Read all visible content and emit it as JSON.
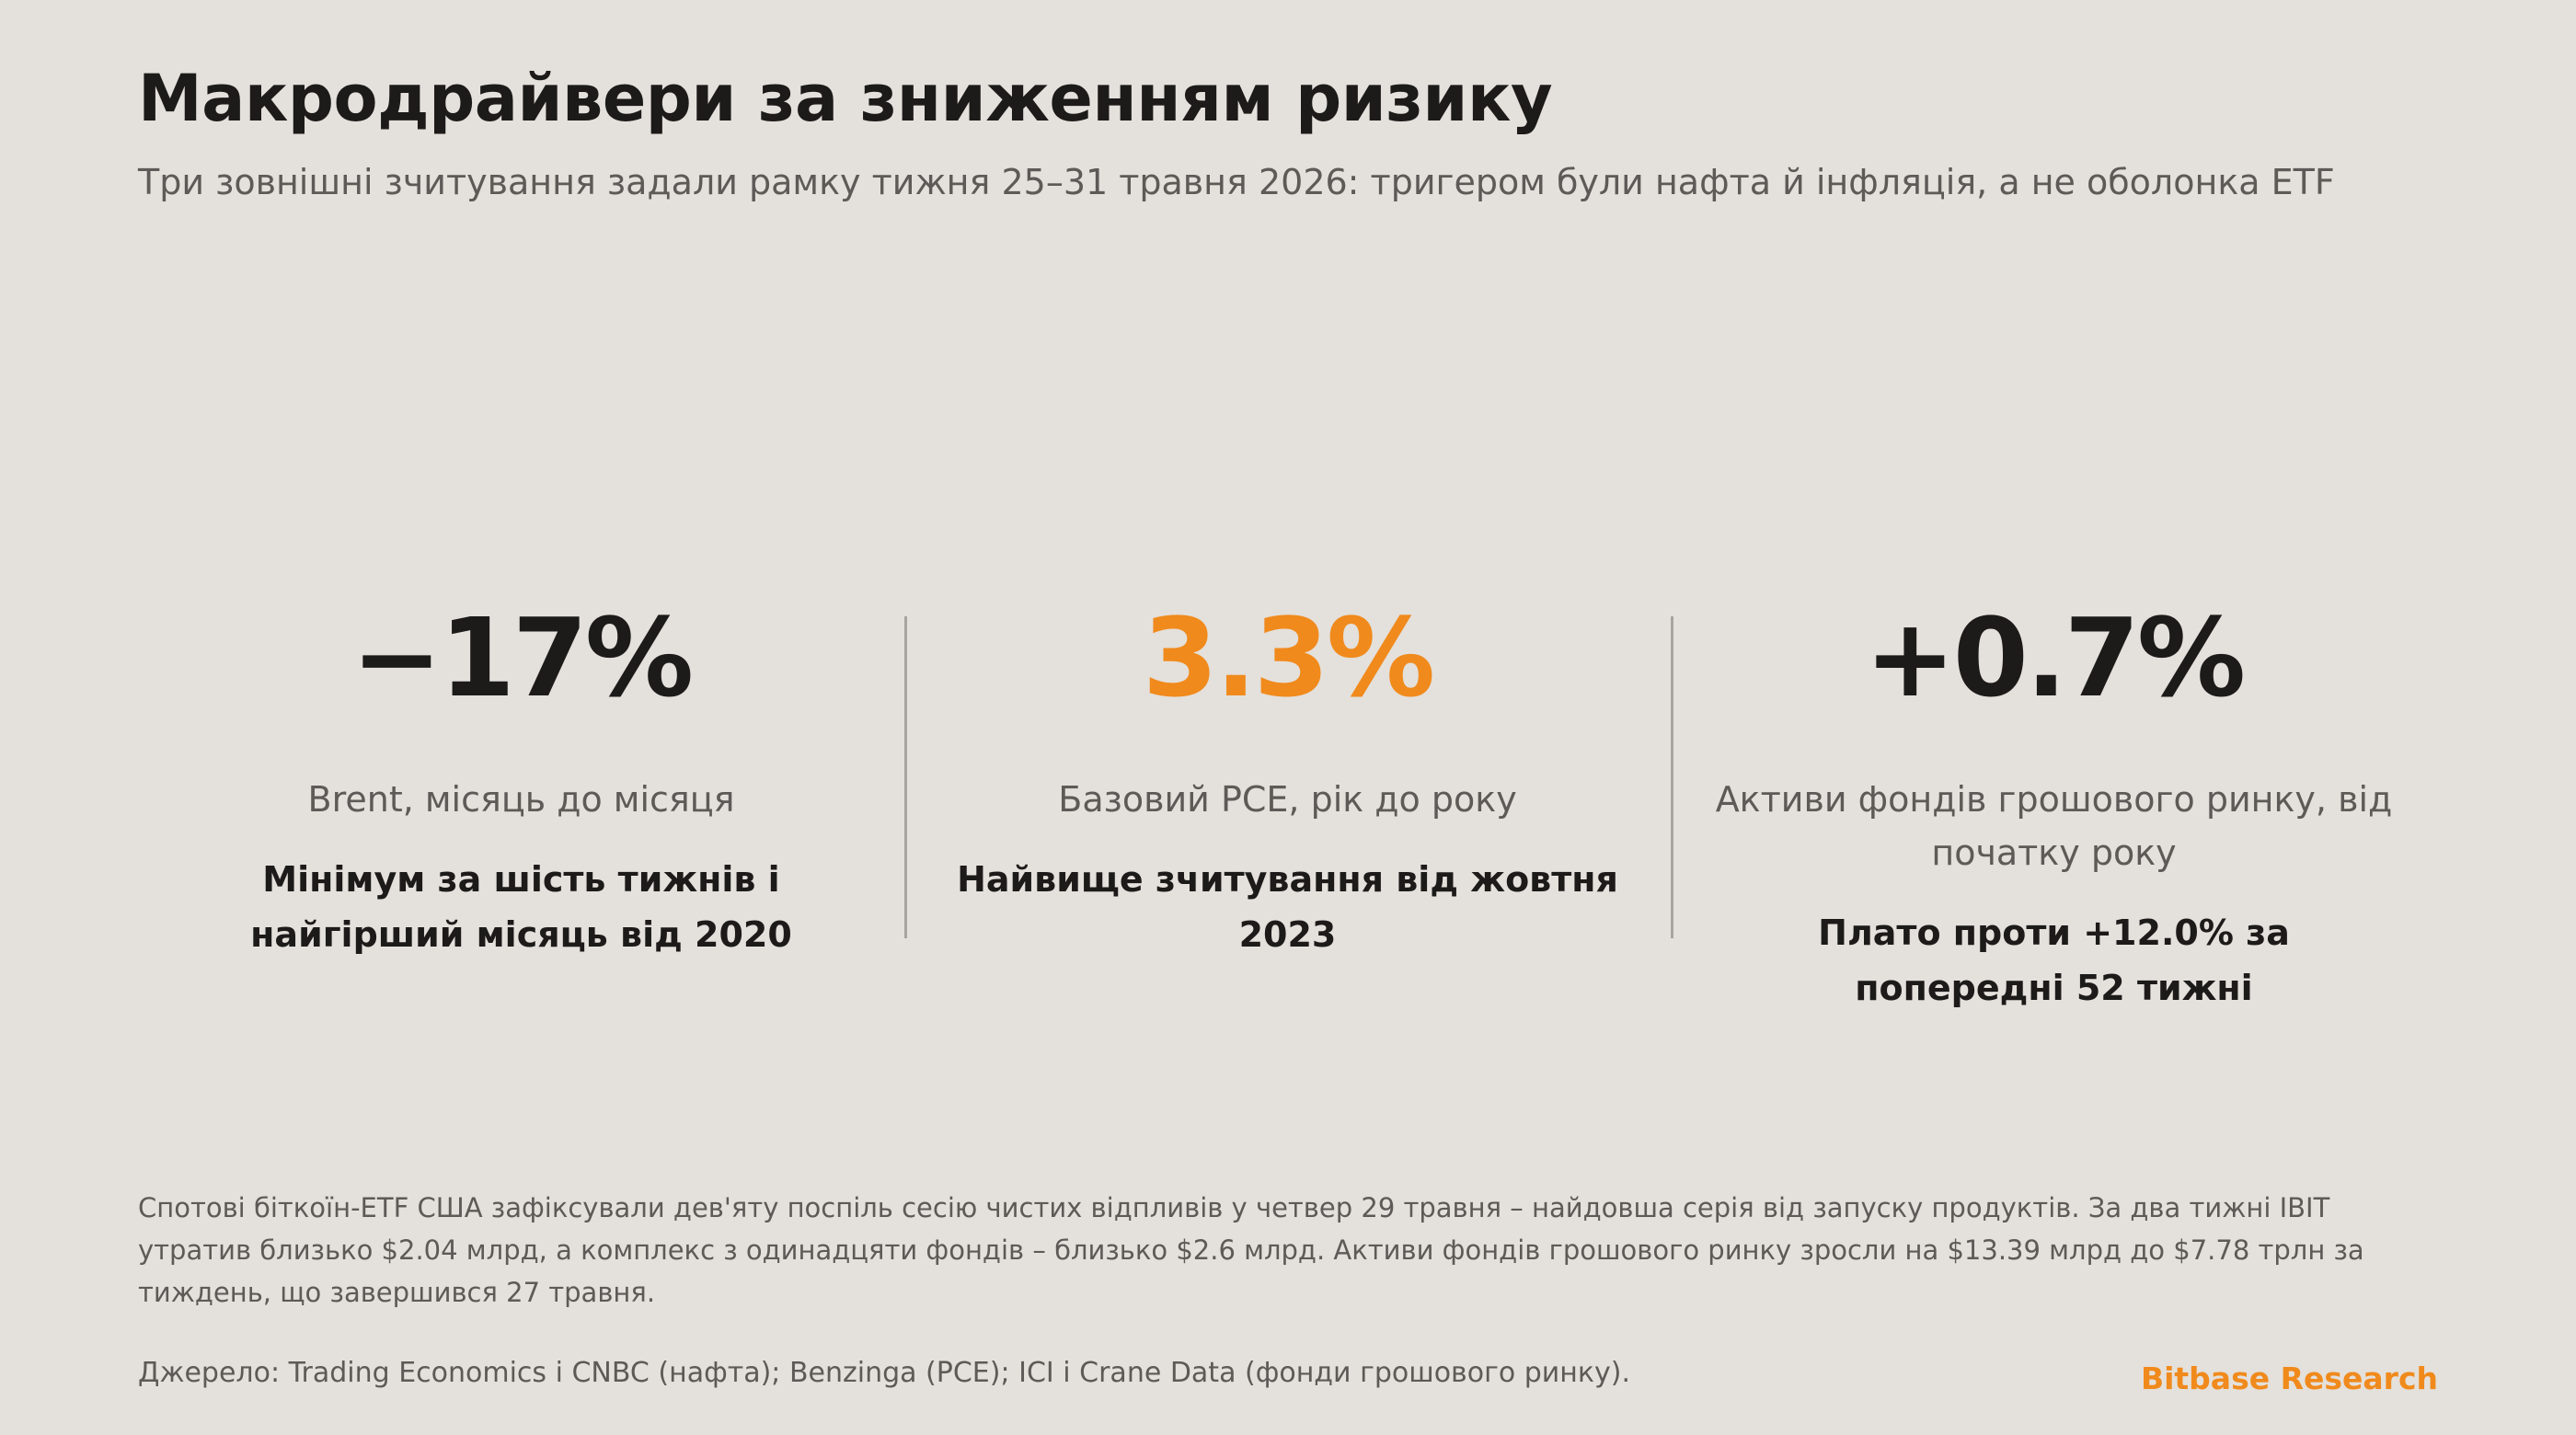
{
  "header": {
    "title": "Макродрайвери за зниженням ризику",
    "subtitle": "Три зовнішні зчитування задали рамку тижня 25–31 травня 2026: тригером були нафта й інфляція, а не оболонка ETF"
  },
  "metrics": [
    {
      "value": "−17%",
      "label": "Brent, місяць до місяця",
      "note": "Мінімум за шість тижнів і найгірший місяць від 2020"
    },
    {
      "value": "3.3%",
      "label": "Базовий PCE, рік до року",
      "note": "Найвище зчитування від жовтня 2023"
    },
    {
      "value": "+0.7%",
      "label": "Активи фондів грошового ринку, від початку року",
      "note": "Плато проти +12.0% за попередні 52 тижні"
    }
  ],
  "footnote": "Спотові біткоїн-ETF США зафіксували дев'яту поспіль сесію чистих відпливів у четвер 29 травня – найдовша серія від запуску продуктів. За два тижні IBIT утратив близько $2.04 млрд, а комплекс з одинадцяти фондів – близько $2.6 млрд. Активи фондів грошового ринку зросли на $13.39 млрд до $7.78 трлн за тиждень, що завершився 27 травня.",
  "source": "Джерело: Trading Economics і CNBC (нафта); Benzinga (PCE); ICI і Crane Data (фонди грошового ринку).",
  "brand": "Bitbase Research",
  "colors": {
    "background": "#e4e0db",
    "text": "#1c1b1a",
    "muted": "#5d5a57",
    "accent": "#f08a1c",
    "divider": "#a8a49f"
  }
}
